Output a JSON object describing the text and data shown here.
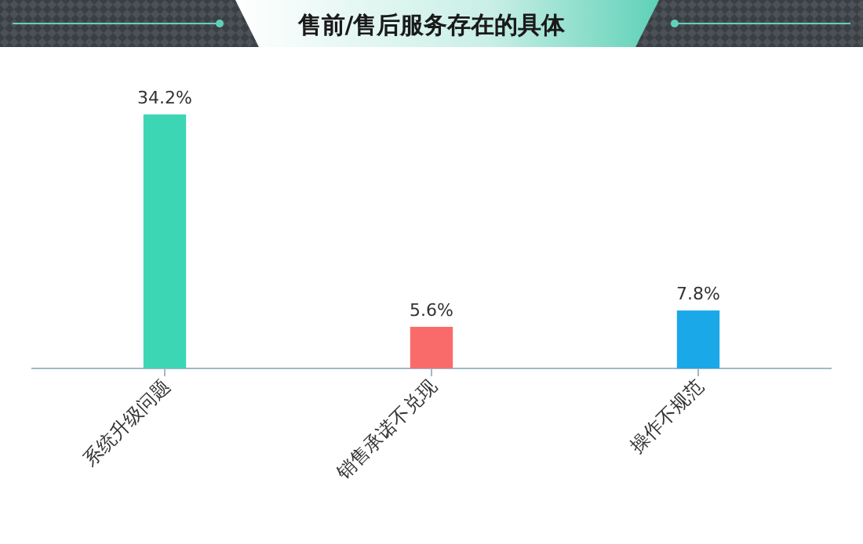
{
  "chart_data": {
    "type": "bar",
    "title": "售前/售后服务存在的具体",
    "categories": [
      "系统升级问题",
      "销售承诺不兑现",
      "操作不规范"
    ],
    "values": [
      34.2,
      5.6,
      7.8
    ],
    "colors": [
      "#3dd6b5",
      "#f96b6b",
      "#1aa8e8"
    ],
    "value_labels": [
      "34.2%",
      "5.6%",
      "7.8%"
    ]
  }
}
